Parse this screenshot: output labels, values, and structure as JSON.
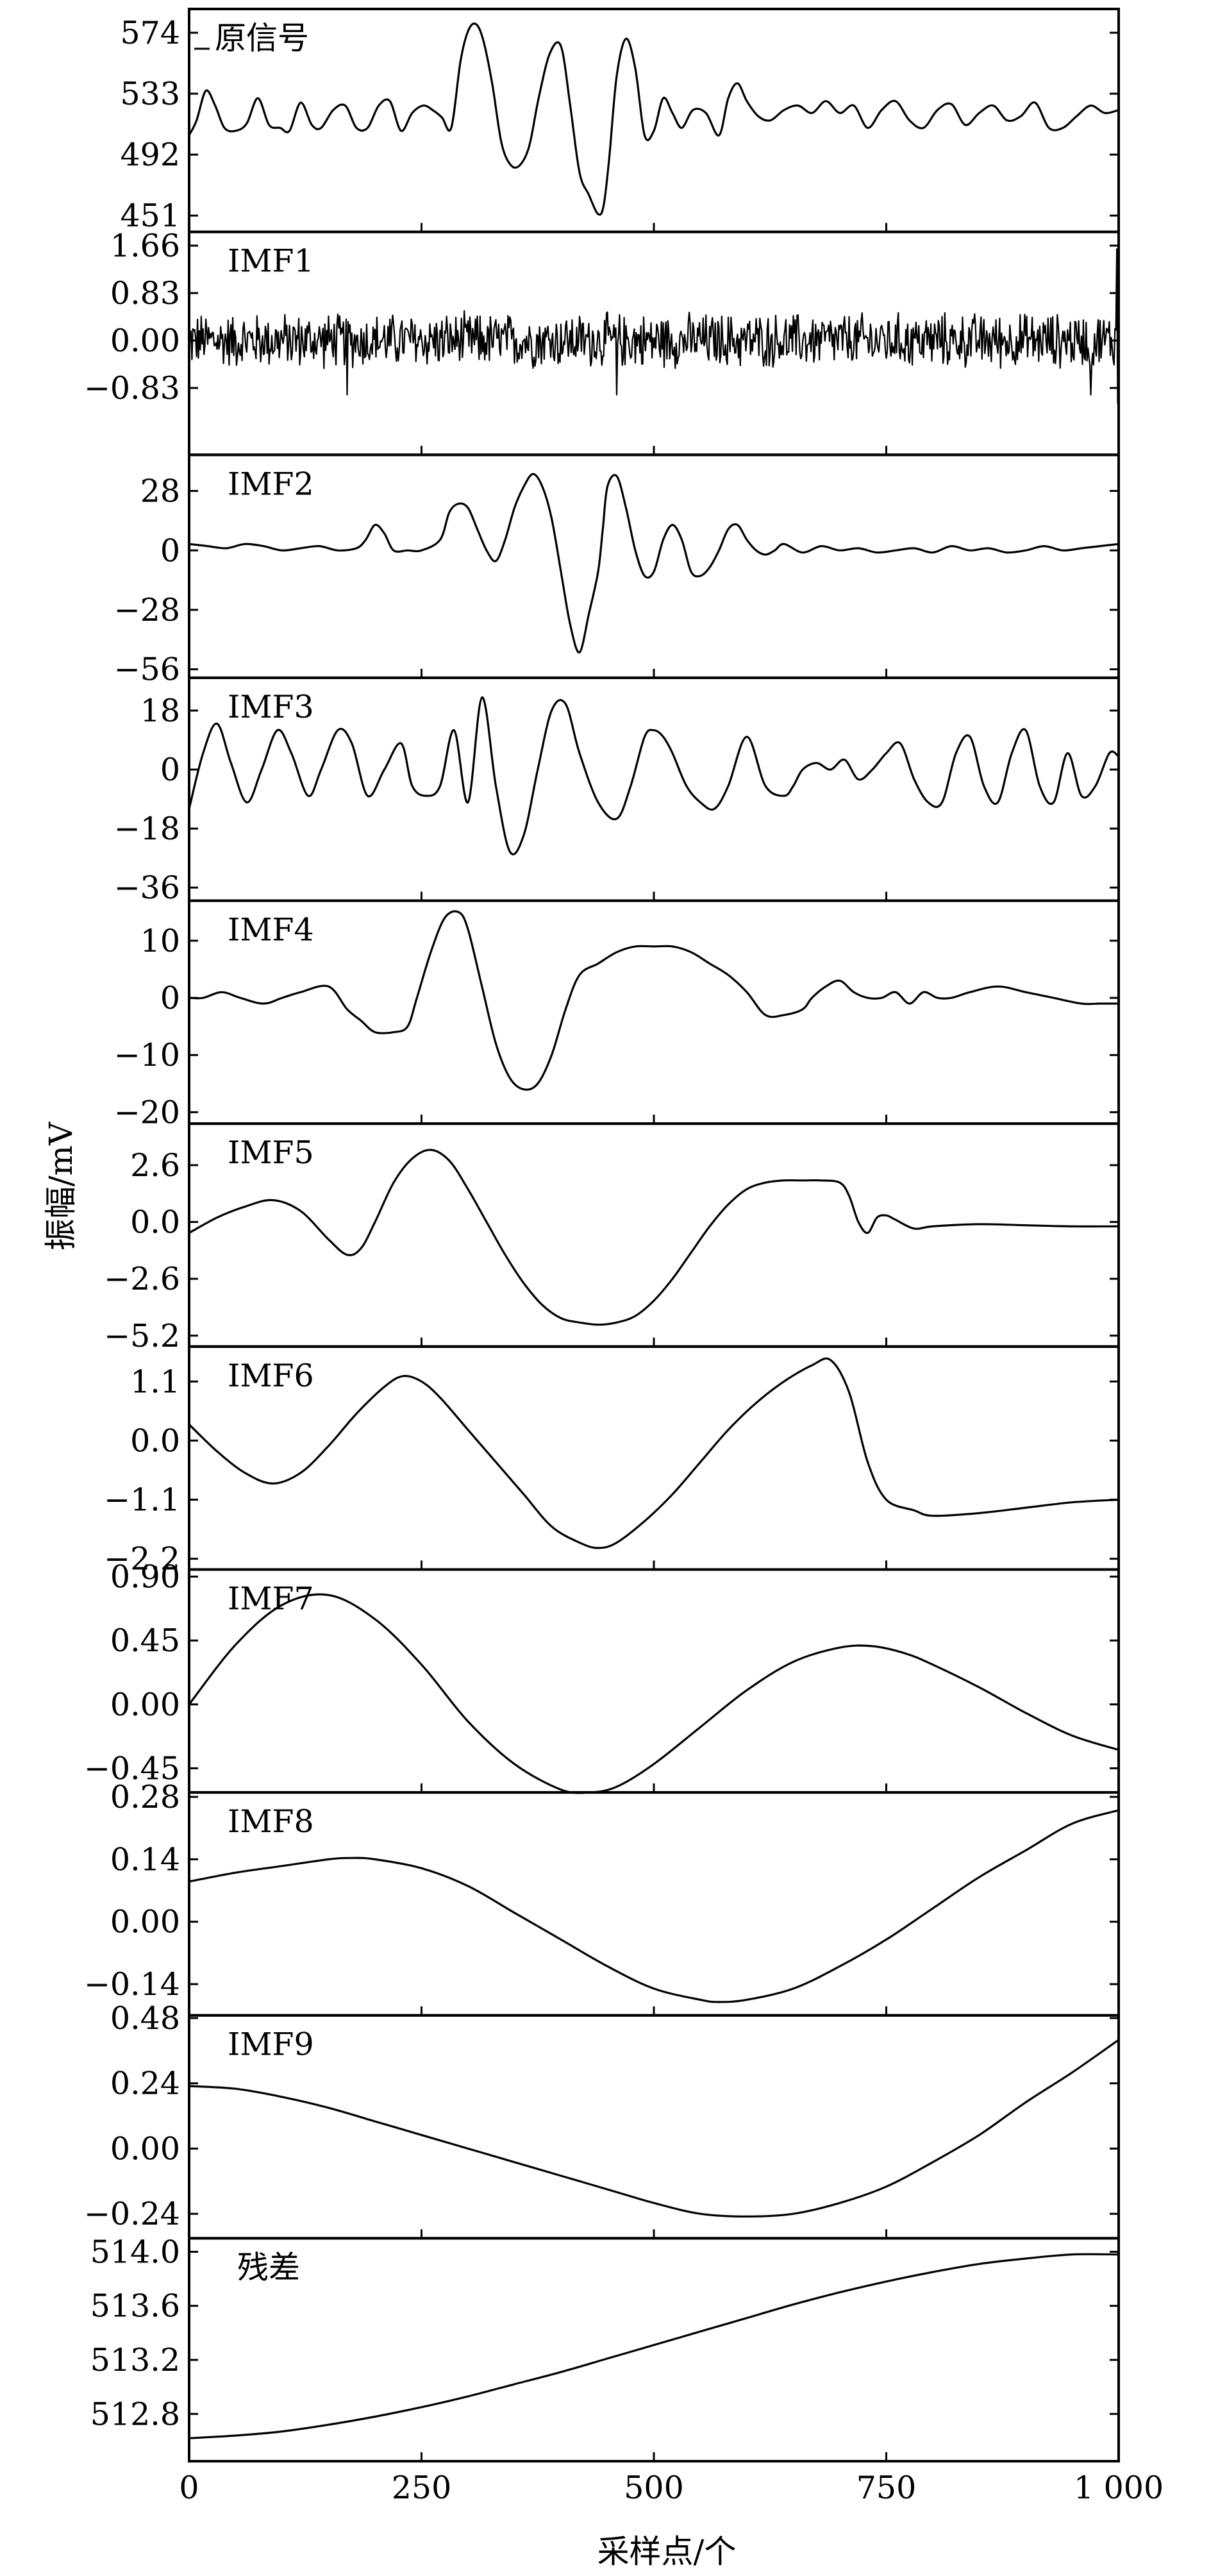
{
  "chart_data": {
    "type": "line",
    "layout": "stacked-panels",
    "xlabel": "采样点/个",
    "ylabel": "振幅/mV",
    "xlim": [
      0,
      1000
    ],
    "xticks": [
      0,
      250,
      500,
      750,
      1000
    ],
    "xtick_labels": [
      "0",
      "250",
      "500",
      "750",
      "1 000"
    ],
    "panels": [
      {
        "label": "原信号",
        "legend_dash": true,
        "ylim": [
          440,
          590
        ],
        "yticks": [
          451,
          492,
          533,
          574
        ],
        "ytick_labels": [
          "451",
          "492",
          "533",
          "574"
        ],
        "style": "smooth",
        "x": [
          0,
          8,
          18,
          28,
          38,
          50,
          62,
          74,
          86,
          98,
          108,
          120,
          132,
          142,
          155,
          168,
          180,
          192,
          204,
          216,
          228,
          240,
          252,
          262,
          272,
          282,
          292,
          300,
          308,
          316,
          326,
          336,
          346,
          356,
          366,
          376,
          388,
          400,
          410,
          420,
          430,
          440,
          446,
          452,
          460,
          470,
          480,
          490,
          500,
          510,
          520,
          530,
          542,
          556,
          570,
          580,
          590,
          600,
          612,
          625,
          640,
          655,
          670,
          685,
          700,
          715,
          730,
          745,
          760,
          775,
          790,
          805,
          820,
          835,
          850,
          865,
          880,
          895,
          910,
          925,
          940,
          955,
          970,
          985,
          1000
        ],
        "y": [
          505,
          515,
          535,
          525,
          510,
          508,
          513,
          530,
          512,
          510,
          508,
          527,
          512,
          510,
          522,
          525,
          510,
          510,
          525,
          528,
          508,
          520,
          525,
          522,
          517,
          510,
          555,
          575,
          580,
          570,
          540,
          500,
          485,
          485,
          498,
          530,
          560,
          565,
          525,
          480,
          465,
          452,
          458,
          490,
          545,
          570,
          550,
          505,
          508,
          530,
          520,
          510,
          522,
          520,
          505,
          530,
          540,
          528,
          518,
          515,
          522,
          525,
          520,
          528,
          520,
          525,
          510,
          522,
          528,
          515,
          510,
          522,
          526,
          512,
          520,
          525,
          515,
          518,
          527,
          510,
          510,
          518,
          525,
          520,
          522
        ]
      },
      {
        "label": "IMF1",
        "ylim": [
          -2.0,
          1.9
        ],
        "yticks": [
          -0.83,
          0.0,
          0.83,
          1.66
        ],
        "ytick_labels": [
          "−0.83",
          "0.00",
          "0.83",
          "1.66"
        ],
        "style": "noise",
        "noise_amp": 0.45,
        "end_spikes": [
          1.6,
          -1.1
        ],
        "neg_spikes": [
          170,
          460,
          970
        ]
      },
      {
        "label": "IMF2",
        "ylim": [
          -60,
          45
        ],
        "yticks": [
          -56,
          -28,
          0,
          28
        ],
        "ytick_labels": [
          "−56",
          "−28",
          "0",
          "28"
        ],
        "style": "smooth",
        "x": [
          0,
          20,
          40,
          60,
          80,
          100,
          120,
          140,
          160,
          180,
          190,
          200,
          210,
          220,
          235,
          250,
          270,
          280,
          290,
          300,
          310,
          320,
          330,
          340,
          350,
          360,
          370,
          380,
          390,
          400,
          410,
          420,
          430,
          440,
          445,
          450,
          460,
          470,
          480,
          490,
          500,
          510,
          520,
          530,
          540,
          550,
          560,
          570,
          580,
          590,
          600,
          610,
          620,
          630,
          640,
          660,
          680,
          700,
          720,
          740,
          760,
          780,
          800,
          820,
          840,
          860,
          880,
          900,
          920,
          940,
          960,
          980,
          1000
        ],
        "y": [
          3,
          2,
          1,
          3,
          2,
          0,
          1,
          2,
          0,
          1,
          5,
          12,
          8,
          0,
          0,
          0,
          5,
          18,
          22,
          20,
          10,
          0,
          -5,
          5,
          20,
          30,
          36,
          30,
          15,
          -10,
          -35,
          -48,
          -30,
          -10,
          10,
          30,
          35,
          20,
          0,
          -12,
          -10,
          5,
          12,
          5,
          -10,
          -12,
          -8,
          0,
          10,
          12,
          5,
          0,
          -2,
          0,
          3,
          -1,
          2,
          0,
          1,
          -1,
          0,
          1,
          -1,
          2,
          0,
          1,
          -1,
          0,
          2,
          0,
          1,
          2,
          3
        ]
      },
      {
        "label": "IMF3",
        "ylim": [
          -40,
          28
        ],
        "yticks": [
          -36,
          -18,
          0,
          18
        ],
        "ytick_labels": [
          "−36",
          "−18",
          "0",
          "18"
        ],
        "style": "smooth",
        "x": [
          0,
          15,
          30,
          45,
          62,
          78,
          95,
          110,
          128,
          142,
          160,
          175,
          192,
          210,
          228,
          240,
          255,
          270,
          285,
          300,
          315,
          330,
          345,
          360,
          375,
          390,
          405,
          420,
          440,
          460,
          475,
          490,
          500,
          510,
          520,
          535,
          550,
          565,
          580,
          600,
          620,
          640,
          650,
          660,
          675,
          690,
          705,
          720,
          735,
          750,
          765,
          780,
          795,
          810,
          825,
          840,
          855,
          870,
          885,
          900,
          915,
          930,
          945,
          960,
          975,
          990,
          1000
        ],
        "y": [
          -12,
          5,
          14,
          2,
          -10,
          0,
          12,
          5,
          -8,
          0,
          12,
          8,
          -8,
          0,
          8,
          -5,
          -8,
          -5,
          12,
          -10,
          22,
          -5,
          -25,
          -20,
          0,
          18,
          20,
          5,
          -10,
          -15,
          -5,
          10,
          12,
          10,
          5,
          -5,
          -10,
          -12,
          -5,
          10,
          -5,
          -8,
          -5,
          0,
          2,
          0,
          3,
          -3,
          0,
          5,
          8,
          -3,
          -10,
          -10,
          5,
          10,
          -5,
          -10,
          5,
          12,
          -5,
          -10,
          5,
          -8,
          -5,
          5,
          4
        ]
      },
      {
        "label": "IMF4",
        "ylim": [
          -22,
          17
        ],
        "yticks": [
          -20,
          -10,
          0,
          10
        ],
        "ytick_labels": [
          "−20",
          "−10",
          "0",
          "10"
        ],
        "style": "smooth",
        "x": [
          0,
          15,
          35,
          55,
          80,
          100,
          120,
          150,
          170,
          185,
          200,
          220,
          235,
          245,
          260,
          275,
          290,
          300,
          315,
          330,
          345,
          360,
          375,
          390,
          405,
          420,
          440,
          460,
          480,
          500,
          520,
          540,
          560,
          580,
          600,
          620,
          640,
          660,
          670,
          685,
          700,
          715,
          730,
          745,
          760,
          775,
          790,
          805,
          820,
          840,
          870,
          900,
          930,
          960,
          980,
          1000
        ],
        "y": [
          0,
          0,
          1,
          0,
          -1,
          0,
          1,
          2,
          -2,
          -4,
          -6,
          -6,
          -5,
          0,
          8,
          14,
          15,
          12,
          2,
          -8,
          -14,
          -16,
          -15,
          -10,
          -2,
          4,
          6,
          8,
          9,
          9,
          9,
          8,
          6,
          4,
          1,
          -3,
          -3,
          -2,
          0,
          2,
          3,
          1,
          0,
          0,
          1,
          -1,
          1,
          0,
          0,
          1,
          2,
          1,
          0,
          -1,
          -1,
          -1
        ]
      },
      {
        "label": "IMF5",
        "ylim": [
          -5.7,
          4.5
        ],
        "yticks": [
          -5.2,
          -2.6,
          0.0,
          2.6
        ],
        "ytick_labels": [
          "−5.2",
          "−2.6",
          "0.0",
          "2.6"
        ],
        "style": "smooth",
        "x": [
          0,
          30,
          60,
          90,
          120,
          150,
          170,
          185,
          200,
          220,
          240,
          260,
          280,
          300,
          320,
          340,
          360,
          380,
          400,
          420,
          440,
          460,
          480,
          500,
          520,
          540,
          560,
          580,
          600,
          620,
          640,
          660,
          680,
          700,
          710,
          720,
          730,
          740,
          750,
          760,
          780,
          800,
          850,
          900,
          950,
          1000
        ],
        "y": [
          -0.5,
          0.2,
          0.7,
          1.0,
          0.5,
          -0.8,
          -1.5,
          -1.2,
          0.0,
          1.8,
          2.9,
          3.3,
          2.8,
          1.5,
          0.0,
          -1.5,
          -2.8,
          -3.8,
          -4.4,
          -4.6,
          -4.7,
          -4.6,
          -4.3,
          -3.6,
          -2.6,
          -1.4,
          -0.2,
          0.8,
          1.5,
          1.8,
          1.9,
          1.9,
          1.9,
          1.8,
          1.2,
          0.0,
          -0.5,
          0.2,
          0.3,
          0.1,
          -0.3,
          -0.2,
          -0.1,
          -0.15,
          -0.2,
          -0.2
        ]
      },
      {
        "label": "IMF6",
        "ylim": [
          -2.4,
          1.75
        ],
        "yticks": [
          -2.2,
          -1.1,
          0.0,
          1.1
        ],
        "ytick_labels": [
          "−2.2",
          "−1.1",
          "0.0",
          "1.1"
        ],
        "style": "smooth",
        "x": [
          0,
          30,
          60,
          90,
          120,
          150,
          180,
          210,
          230,
          250,
          270,
          300,
          330,
          360,
          390,
          420,
          440,
          460,
          490,
          520,
          550,
          580,
          610,
          640,
          670,
          690,
          710,
          730,
          750,
          780,
          800,
          850,
          900,
          950,
          1000
        ],
        "y": [
          0.3,
          -0.2,
          -0.6,
          -0.8,
          -0.6,
          -0.1,
          0.5,
          1.0,
          1.2,
          1.1,
          0.8,
          0.2,
          -0.4,
          -1.0,
          -1.6,
          -1.9,
          -2.0,
          -1.9,
          -1.5,
          -1.0,
          -0.4,
          0.2,
          0.7,
          1.1,
          1.4,
          1.5,
          0.9,
          -0.4,
          -1.1,
          -1.3,
          -1.4,
          -1.35,
          -1.25,
          -1.15,
          -1.1
        ]
      },
      {
        "label": "IMF7",
        "ylim": [
          -0.62,
          0.95
        ],
        "yticks": [
          -0.45,
          0.0,
          0.45,
          0.9
        ],
        "ytick_labels": [
          "−0.45",
          "0.00",
          "0.45",
          "0.90"
        ],
        "style": "smooth",
        "x": [
          0,
          50,
          100,
          150,
          200,
          250,
          300,
          350,
          400,
          430,
          460,
          500,
          550,
          600,
          650,
          700,
          735,
          770,
          800,
          850,
          900,
          950,
          1000
        ],
        "y": [
          0.0,
          0.42,
          0.7,
          0.77,
          0.6,
          0.28,
          -0.12,
          -0.42,
          -0.6,
          -0.62,
          -0.58,
          -0.42,
          -0.16,
          0.1,
          0.3,
          0.4,
          0.41,
          0.36,
          0.28,
          0.12,
          -0.06,
          -0.22,
          -0.32
        ]
      },
      {
        "label": "IMF8",
        "ylim": [
          -0.21,
          0.29
        ],
        "yticks": [
          -0.14,
          0.0,
          0.14,
          0.28
        ],
        "ytick_labels": [
          "−0.14",
          "0.00",
          "0.14",
          "0.28"
        ],
        "style": "smooth",
        "x": [
          0,
          50,
          100,
          150,
          175,
          200,
          250,
          300,
          350,
          400,
          450,
          500,
          550,
          570,
          600,
          650,
          700,
          750,
          800,
          850,
          900,
          950,
          1000
        ],
        "y": [
          0.09,
          0.11,
          0.125,
          0.14,
          0.143,
          0.14,
          0.12,
          0.08,
          0.02,
          -0.04,
          -0.1,
          -0.15,
          -0.175,
          -0.18,
          -0.175,
          -0.15,
          -0.1,
          -0.04,
          0.03,
          0.1,
          0.16,
          0.22,
          0.25
        ]
      },
      {
        "label": "IMF9",
        "ylim": [
          -0.33,
          0.49
        ],
        "yticks": [
          -0.24,
          0.0,
          0.24,
          0.48
        ],
        "ytick_labels": [
          "−0.24",
          "0.00",
          "0.24",
          "0.48"
        ],
        "style": "smooth",
        "x": [
          0,
          50,
          100,
          150,
          200,
          250,
          300,
          350,
          400,
          450,
          500,
          550,
          600,
          650,
          700,
          750,
          800,
          850,
          900,
          950,
          1000
        ],
        "y": [
          0.23,
          0.22,
          0.19,
          0.15,
          0.1,
          0.05,
          0.0,
          -0.05,
          -0.1,
          -0.15,
          -0.2,
          -0.24,
          -0.25,
          -0.24,
          -0.2,
          -0.14,
          -0.05,
          0.05,
          0.17,
          0.28,
          0.4
        ]
      },
      {
        "label": "残差",
        "ylim": [
          512.45,
          514.1
        ],
        "yticks": [
          512.8,
          513.2,
          513.6,
          514.0
        ],
        "ytick_labels": [
          "512.8",
          "513.2",
          "513.6",
          "514.0"
        ],
        "style": "smooth",
        "x": [
          0,
          50,
          100,
          150,
          200,
          250,
          300,
          350,
          400,
          450,
          500,
          550,
          600,
          650,
          700,
          750,
          800,
          850,
          900,
          950,
          1000
        ],
        "y": [
          512.62,
          512.64,
          512.67,
          512.72,
          512.78,
          512.85,
          512.93,
          513.02,
          513.11,
          513.21,
          513.31,
          513.41,
          513.51,
          513.61,
          513.7,
          513.78,
          513.85,
          513.91,
          513.95,
          513.98,
          513.98
        ]
      }
    ]
  }
}
